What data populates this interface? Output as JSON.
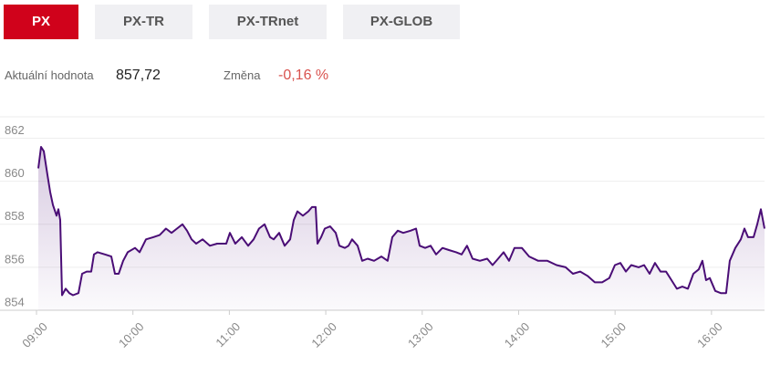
{
  "tabs": [
    "PX",
    "PX-TR",
    "PX-TRnet",
    "PX-GLOB"
  ],
  "info": {
    "value_label": "Aktuální hodnota",
    "value": "857,72",
    "change_label": "Změna",
    "change": "-0,16 %"
  },
  "chart_data": {
    "type": "line",
    "color": "#4a0d76",
    "grid": true,
    "xlim": [
      9,
      16.55
    ],
    "ylim": [
      854,
      863
    ],
    "yticks": [
      854,
      856,
      858,
      860,
      862
    ],
    "xticks": [
      {
        "value": 9,
        "label": "09:00"
      },
      {
        "value": 10,
        "label": "10:00"
      },
      {
        "value": 11,
        "label": "11:00"
      },
      {
        "value": 12,
        "label": "12:00"
      },
      {
        "value": 13,
        "label": "13:00"
      },
      {
        "value": 14,
        "label": "14:00"
      },
      {
        "value": 15,
        "label": "15:00"
      },
      {
        "value": 16,
        "label": "16:00"
      }
    ],
    "series": [
      {
        "color": "#4a0d76",
        "x": [
          9.019,
          9.047,
          9.076,
          9.114,
          9.142,
          9.17,
          9.208,
          9.227,
          9.246,
          9.265,
          9.303,
          9.341,
          9.378,
          9.435,
          9.473,
          9.52,
          9.568,
          9.596,
          9.634,
          9.71,
          9.776,
          9.814,
          9.852,
          9.899,
          9.946,
          10.022,
          10.069,
          10.135,
          10.211,
          10.277,
          10.343,
          10.4,
          10.457,
          10.514,
          10.561,
          10.608,
          10.656,
          10.722,
          10.798,
          10.873,
          10.968,
          11.006,
          11.062,
          11.129,
          11.195,
          11.252,
          11.308,
          11.365,
          11.422,
          11.46,
          11.517,
          11.573,
          11.63,
          11.668,
          11.706,
          11.763,
          11.819,
          11.857,
          11.895,
          11.914,
          11.952,
          11.99,
          12.046,
          12.103,
          12.141,
          12.198,
          12.236,
          12.273,
          12.33,
          12.378,
          12.434,
          12.501,
          12.576,
          12.642,
          12.69,
          12.747,
          12.803,
          12.879,
          12.936,
          12.974,
          13.03,
          13.087,
          13.144,
          13.21,
          13.276,
          13.352,
          13.409,
          13.465,
          13.522,
          13.598,
          13.674,
          13.73,
          13.787,
          13.844,
          13.901,
          13.957,
          14.033,
          14.109,
          14.203,
          14.298,
          14.393,
          14.487,
          14.563,
          14.639,
          14.714,
          14.79,
          14.866,
          14.941,
          14.998,
          15.055,
          15.112,
          15.168,
          15.244,
          15.301,
          15.358,
          15.414,
          15.471,
          15.528,
          15.585,
          15.641,
          15.698,
          15.755,
          15.812,
          15.868,
          15.906,
          15.944,
          15.982,
          16.039,
          16.096,
          16.152,
          16.19,
          16.247,
          16.304,
          16.342,
          16.379,
          16.436,
          16.474,
          16.512,
          16.55
        ],
        "values": [
          860.6,
          861.6,
          861.4,
          860.3,
          859.5,
          858.9,
          858.4,
          858.7,
          858.2,
          854.7,
          855.0,
          854.8,
          854.7,
          854.8,
          855.7,
          855.8,
          855.8,
          856.6,
          856.7,
          856.6,
          856.5,
          855.7,
          855.7,
          856.3,
          856.7,
          856.9,
          856.7,
          857.3,
          857.4,
          857.5,
          857.8,
          857.6,
          857.8,
          858.0,
          857.7,
          857.3,
          857.1,
          857.3,
          857.0,
          857.1,
          857.1,
          857.6,
          857.1,
          857.4,
          857.0,
          857.3,
          857.8,
          858.0,
          857.4,
          857.3,
          857.6,
          857.0,
          857.3,
          858.2,
          858.6,
          858.4,
          858.6,
          858.8,
          858.8,
          857.1,
          857.4,
          857.8,
          857.9,
          857.6,
          857.0,
          856.9,
          857.0,
          857.3,
          857.0,
          856.3,
          856.4,
          856.3,
          856.5,
          856.3,
          857.4,
          857.7,
          857.6,
          857.7,
          857.8,
          857.0,
          856.9,
          857.0,
          856.6,
          856.9,
          856.8,
          856.7,
          856.6,
          857.0,
          856.4,
          856.3,
          856.4,
          856.1,
          856.4,
          856.7,
          856.3,
          856.9,
          856.9,
          856.5,
          856.3,
          856.3,
          856.1,
          856.0,
          855.7,
          855.8,
          855.6,
          855.3,
          855.3,
          855.5,
          856.1,
          856.2,
          855.8,
          856.1,
          856.0,
          856.1,
          855.7,
          856.2,
          855.8,
          855.8,
          855.4,
          855.0,
          855.1,
          855.0,
          855.7,
          855.9,
          856.3,
          855.4,
          855.5,
          854.9,
          854.8,
          854.8,
          856.3,
          856.9,
          857.3,
          857.8,
          857.4,
          857.4,
          858.0,
          858.7,
          857.8
        ]
      }
    ]
  }
}
